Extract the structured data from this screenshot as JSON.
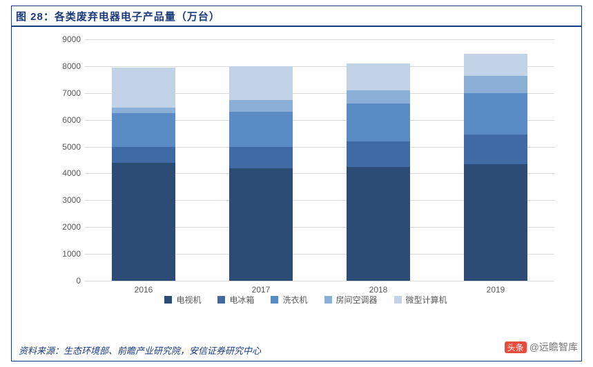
{
  "title": "图 28：各类废弃电器电子产品量（万台）",
  "source": "资料来源：生态环境部、前瞻产业研究院，安信证券研究中心",
  "watermark": {
    "badge": "头条",
    "handle": "@远瞻智库"
  },
  "chart": {
    "type": "stacked-bar",
    "background_color": "#ffffff",
    "grid_color": "#d9d9d9",
    "axis_font_color": "#595959",
    "axis_fontsize": 12,
    "title_color": "#1a3a7a",
    "title_fontsize": 15,
    "ylim": [
      0,
      9000
    ],
    "ytick_step": 1000,
    "yticks": [
      0,
      1000,
      2000,
      3000,
      4000,
      5000,
      6000,
      7000,
      8000,
      9000
    ],
    "categories": [
      "2016",
      "2017",
      "2018",
      "2019"
    ],
    "bar_width_ratio": 0.54,
    "series": [
      {
        "name": "电视机",
        "color": "#2c4b75"
      },
      {
        "name": "电冰箱",
        "color": "#3f6aa3"
      },
      {
        "name": "洗衣机",
        "color": "#5b8bc4"
      },
      {
        "name": "房间空调器",
        "color": "#8aaed6"
      },
      {
        "name": "微型计算机",
        "color": "#c2d3e8"
      }
    ],
    "values": [
      [
        4400,
        600,
        1250,
        200,
        1500
      ],
      [
        4200,
        800,
        1300,
        450,
        1250
      ],
      [
        4250,
        950,
        1400,
        500,
        1000
      ],
      [
        4350,
        1100,
        1550,
        650,
        800
      ]
    ]
  }
}
